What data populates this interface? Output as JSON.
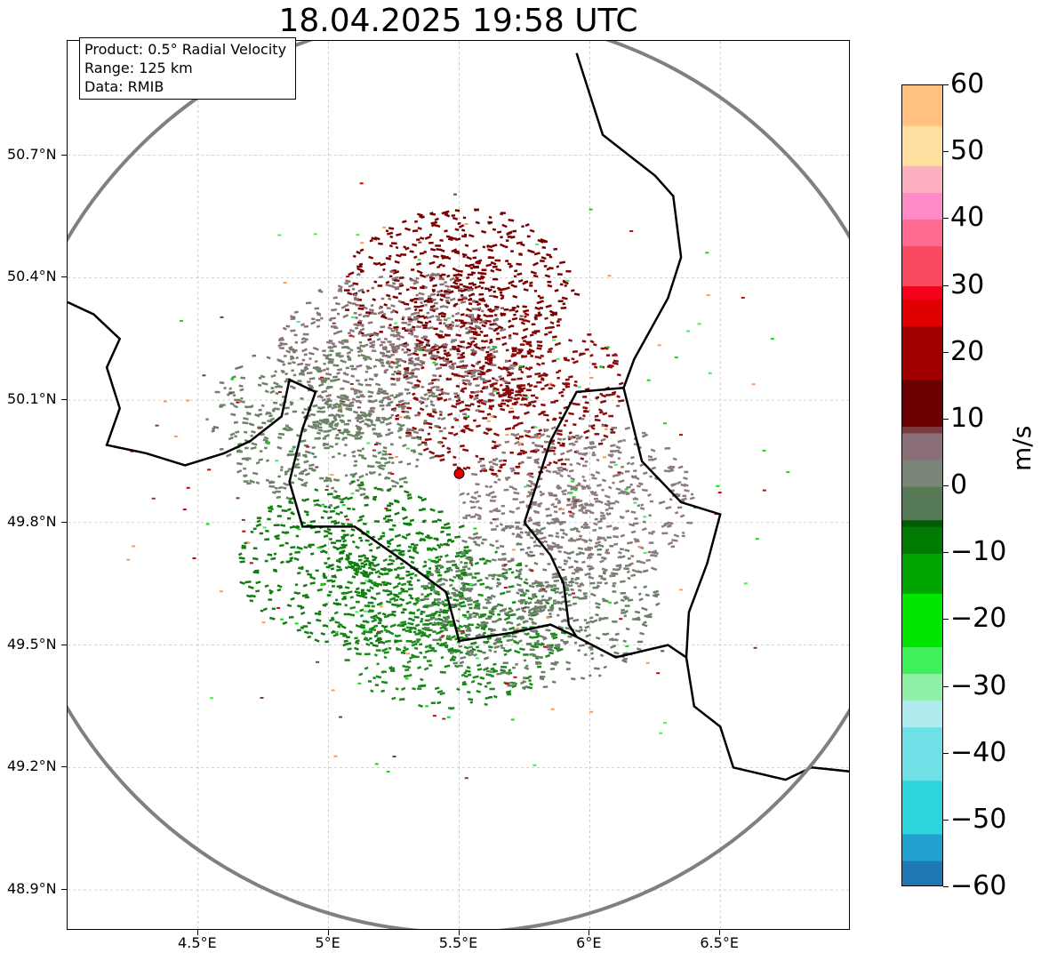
{
  "title": "18.04.2025 19:58 UTC",
  "info": {
    "product": "Product: 0.5° Radial Velocity",
    "range": "Range: 125 km",
    "data": "Data: RMIB"
  },
  "map": {
    "lon_range": [
      4.0,
      7.0
    ],
    "lat_range": [
      48.8,
      50.98
    ],
    "radar_site": {
      "lon": 5.5,
      "lat": 49.92
    },
    "range_ring_km": 125,
    "range_ring_color": "#808080",
    "gridlines": "dashed, light grey",
    "border_color": "#000000",
    "subborder_color": "#808080",
    "x_ticks": [
      "4.5°E",
      "5°E",
      "5.5°E",
      "6°E",
      "6.5°E"
    ],
    "x_tick_values": [
      4.5,
      5.0,
      5.5,
      6.0,
      6.5
    ],
    "y_ticks": [
      "50.7°N",
      "50.4°N",
      "50.1°N",
      "49.8°N",
      "49.5°N",
      "49.2°N",
      "48.9°N"
    ],
    "y_tick_values": [
      50.7,
      50.4,
      50.1,
      49.8,
      49.5,
      49.2,
      48.9
    ],
    "echo_regions": [
      {
        "name": "outbound-core-north",
        "color": "#7a0000",
        "lon": 5.5,
        "lat": 50.37,
        "velocity_ms": 12
      },
      {
        "name": "outbound-east",
        "color": "#8b0a0a",
        "lon": 5.68,
        "lat": 50.12,
        "velocity_ms": 14
      },
      {
        "name": "near-zero-north",
        "color": "#8a7477",
        "lon": 5.25,
        "lat": 50.22,
        "velocity_ms": 3
      },
      {
        "name": "near-zero-west",
        "color": "#6a8466",
        "lon": 4.98,
        "lat": 50.05,
        "velocity_ms": -3
      },
      {
        "name": "inbound-southwest",
        "color": "#117d11",
        "lon": 5.1,
        "lat": 49.7,
        "velocity_ms": -14
      },
      {
        "name": "inbound-south",
        "color": "#1a8a1a",
        "lon": 5.45,
        "lat": 49.55,
        "velocity_ms": -12
      },
      {
        "name": "near-zero-southeast",
        "color": "#6c806a",
        "lon": 5.8,
        "lat": 49.6,
        "velocity_ms": -4
      },
      {
        "name": "near-zero-east",
        "color": "#8c7a7c",
        "lon": 5.95,
        "lat": 49.85,
        "velocity_ms": 2
      }
    ]
  },
  "colorbar": {
    "label": "m/s",
    "ticks": [
      "60",
      "50",
      "40",
      "30",
      "20",
      "10",
      "0",
      "−10",
      "−20",
      "−30",
      "−40",
      "−50",
      "−60"
    ],
    "tick_values": [
      60,
      50,
      40,
      30,
      20,
      10,
      0,
      -10,
      -20,
      -30,
      -40,
      -50,
      -60
    ],
    "range": [
      -60,
      60
    ],
    "stops": [
      {
        "v": -60,
        "color": "#1f77b4"
      },
      {
        "v": -56,
        "color": "#22a2cf"
      },
      {
        "v": -52,
        "color": "#2cd6dc"
      },
      {
        "v": -44,
        "color": "#6fe0e6"
      },
      {
        "v": -36,
        "color": "#b0ecef"
      },
      {
        "v": -32,
        "color": "#90f0a8"
      },
      {
        "v": -28,
        "color": "#3ff05a"
      },
      {
        "v": -24,
        "color": "#00e600"
      },
      {
        "v": -16,
        "color": "#00a500"
      },
      {
        "v": -10,
        "color": "#007a00"
      },
      {
        "v": -6,
        "color": "#005c00"
      },
      {
        "v": -5,
        "color": "#557a55"
      },
      {
        "v": 0,
        "color": "#7a8477"
      },
      {
        "v": 4,
        "color": "#8a6e78"
      },
      {
        "v": 8,
        "color": "#7a3a40"
      },
      {
        "v": 9,
        "color": "#6a0000"
      },
      {
        "v": 16,
        "color": "#a20000"
      },
      {
        "v": 24,
        "color": "#e00000"
      },
      {
        "v": 28,
        "color": "#f5001a"
      },
      {
        "v": 30,
        "color": "#fa4a60"
      },
      {
        "v": 36,
        "color": "#ff6a90"
      },
      {
        "v": 40,
        "color": "#ff8cc8"
      },
      {
        "v": 44,
        "color": "#ffb0c0"
      },
      {
        "v": 48,
        "color": "#ffe0a0"
      },
      {
        "v": 54,
        "color": "#ffc080"
      },
      {
        "v": 60,
        "color": "#ff9a55"
      }
    ]
  }
}
